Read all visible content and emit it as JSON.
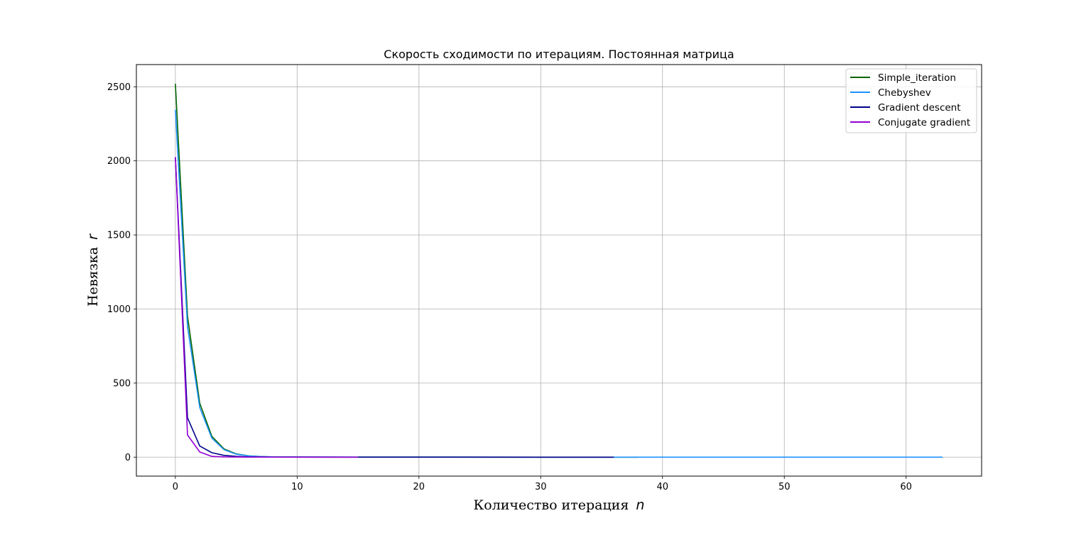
{
  "chart_data": {
    "type": "line",
    "title": "Скорость сходимости по итерациям. Постоянная матрица",
    "xlabel": "Количество итерация",
    "xlabel_var": "n",
    "ylabel": "Невязка",
    "ylabel_var": "r",
    "xlim": [
      -3.2,
      66.2
    ],
    "ylim": [
      -128,
      2650
    ],
    "xticks": [
      0,
      10,
      20,
      30,
      40,
      50,
      60
    ],
    "yticks": [
      0,
      500,
      1000,
      1500,
      2000,
      2500
    ],
    "grid": true,
    "legend_position": "top-right",
    "series": [
      {
        "name": "Simple_iteration",
        "color": "#006400",
        "x": [
          0,
          1,
          2,
          3,
          4,
          5,
          6,
          7,
          8,
          10,
          15,
          20,
          30,
          36,
          38
        ],
        "y": [
          2520,
          950,
          365,
          140,
          55,
          22,
          9,
          4,
          2,
          1,
          0.5,
          0.3,
          0.1,
          0.05,
          0.03
        ]
      },
      {
        "name": "Chebyshev",
        "color": "#1e90ff",
        "x": [
          0,
          1,
          2,
          3,
          4,
          5,
          6,
          7,
          8,
          10,
          15,
          20,
          30,
          40,
          50,
          63
        ],
        "y": [
          2345,
          880,
          335,
          128,
          50,
          20,
          8,
          4,
          2,
          1,
          0.5,
          0.3,
          0.1,
          0.05,
          0.03,
          0.02
        ]
      },
      {
        "name": "Gradient descent",
        "color": "#00008b",
        "x": [
          0,
          1,
          2,
          3,
          4,
          5,
          6,
          7,
          8,
          10,
          15,
          20,
          30,
          36
        ],
        "y": [
          2025,
          265,
          75,
          30,
          12,
          5,
          2,
          1,
          0.5,
          0.3,
          0.1,
          0.05,
          0.02,
          0.01
        ]
      },
      {
        "name": "Conjugate gradient",
        "color": "#9400d3",
        "x": [
          0,
          1,
          2,
          3,
          4,
          5,
          6,
          10,
          15
        ],
        "y": [
          2025,
          150,
          35,
          5,
          2,
          1,
          0.5,
          0.1,
          0.05
        ]
      }
    ]
  }
}
